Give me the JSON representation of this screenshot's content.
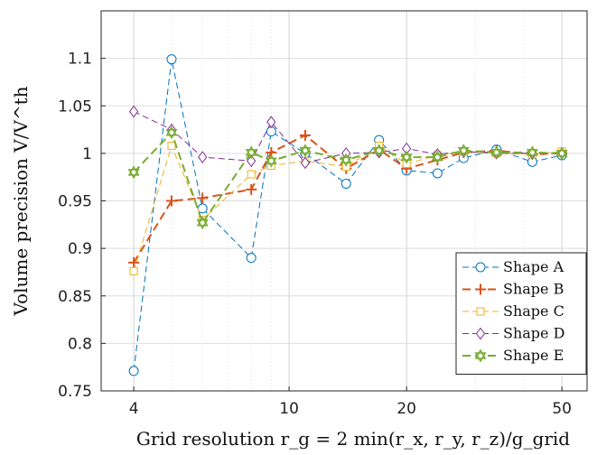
{
  "chart_data": {
    "type": "line",
    "xlabel": "Grid resolution r_g = 2 min(r_x, r_y, r_z)/g_grid",
    "ylabel": "Volume precision V/V^th",
    "xscale": "log",
    "xlim": [
      3.3,
      58
    ],
    "ylim": [
      0.75,
      1.15
    ],
    "xticks": [
      4,
      10,
      20,
      50
    ],
    "yticks": [
      0.75,
      0.8,
      0.85,
      0.9,
      0.95,
      1,
      1.05,
      1.1
    ],
    "ytick_labels": [
      "0.75",
      "0.8",
      "0.85",
      "0.9",
      "0.95",
      "1",
      "1.05",
      "1.1"
    ],
    "grid": true,
    "legend_position": "bottom-right",
    "series": [
      {
        "name": "Shape A",
        "color": "#0072BD",
        "marker": "circle",
        "dash": "dashed-thin",
        "x": [
          4,
          5,
          6,
          8,
          9,
          11,
          14,
          17,
          20,
          24,
          28,
          34,
          42,
          50
        ],
        "y": [
          0.771,
          1.099,
          0.942,
          0.89,
          1.023,
          1.0,
          0.968,
          1.014,
          0.982,
          0.979,
          0.995,
          1.004,
          0.991,
          0.998
        ]
      },
      {
        "name": "Shape B",
        "color": "#D95319",
        "marker": "plus",
        "dash": "dashed-thick",
        "x": [
          4,
          5,
          6,
          8,
          9,
          11,
          14,
          17,
          20,
          24,
          28,
          34,
          42,
          50
        ],
        "y": [
          0.885,
          0.95,
          0.953,
          0.962,
          1.001,
          1.019,
          0.984,
          1.004,
          0.984,
          0.993,
          1.001,
          1.003,
          0.999,
          1.0
        ]
      },
      {
        "name": "Shape C",
        "color": "#EDB120",
        "marker": "square",
        "dash": "dashed-thin",
        "x": [
          4,
          5,
          6,
          8,
          9,
          11,
          14,
          17,
          20,
          24,
          28,
          34,
          42,
          50
        ],
        "y": [
          0.876,
          1.008,
          0.93,
          0.978,
          0.987,
          0.992,
          0.986,
          1.008,
          0.989,
          0.998,
          1.002,
          1.0,
          0.999,
          1.002
        ]
      },
      {
        "name": "Shape D",
        "color": "#7E2F8E",
        "marker": "diamond",
        "dash": "dashed-thin",
        "x": [
          4,
          5,
          6,
          8,
          9,
          11,
          14,
          17,
          20,
          24,
          28,
          34,
          42,
          50
        ],
        "y": [
          1.044,
          1.025,
          0.996,
          0.992,
          1.033,
          0.99,
          1.0,
          1.001,
          1.005,
          0.999,
          1.002,
          1.0,
          1.0,
          1.0
        ]
      },
      {
        "name": "Shape E",
        "color": "#77AC30",
        "marker": "hexagram",
        "dash": "dashed-thick",
        "x": [
          4,
          5,
          6,
          8,
          9,
          11,
          14,
          17,
          20,
          24,
          28,
          34,
          42,
          50
        ],
        "y": [
          0.98,
          1.022,
          0.927,
          1.001,
          0.992,
          1.003,
          0.993,
          1.003,
          0.996,
          0.996,
          1.003,
          1.001,
          1.001,
          1.0
        ]
      }
    ]
  }
}
